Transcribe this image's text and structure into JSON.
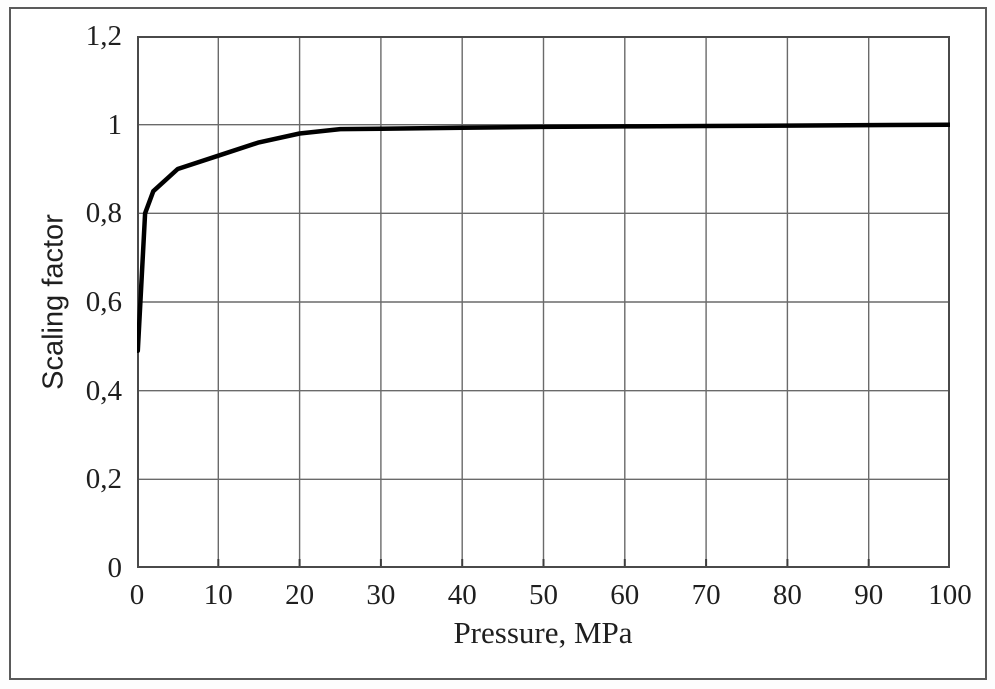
{
  "figure": {
    "background": "#ffffff",
    "border_color": "#5a5a5a"
  },
  "chart_data": {
    "type": "line",
    "title": "",
    "xlabel": "Pressure, MPa",
    "ylabel": "Scaling factor",
    "xlim": [
      0,
      100
    ],
    "ylim": [
      0,
      1.2
    ],
    "x_tick_labels": [
      "0",
      "10",
      "20",
      "30",
      "40",
      "50",
      "60",
      "70",
      "80",
      "90",
      "100"
    ],
    "y_tick_labels": [
      "1,2",
      "1",
      "0,8",
      "0,6",
      "0,4",
      "0,2",
      "0"
    ],
    "grid": true,
    "legend": "none",
    "colors": {
      "curve": "#000000",
      "grid": "#6a6a6a",
      "axis": "#4a4a4a",
      "text": "#1f1f1f"
    },
    "series": [
      {
        "name": "scaling factor vs pressure",
        "x": [
          0.1,
          1,
          2,
          5,
          10,
          15,
          20,
          25,
          30,
          40,
          50,
          60,
          70,
          80,
          90,
          100
        ],
        "y": [
          0.49,
          0.8,
          0.85,
          0.9,
          0.93,
          0.96,
          0.98,
          0.99,
          0.991,
          0.993,
          0.995,
          0.996,
          0.997,
          0.998,
          0.999,
          1.0
        ]
      }
    ]
  }
}
